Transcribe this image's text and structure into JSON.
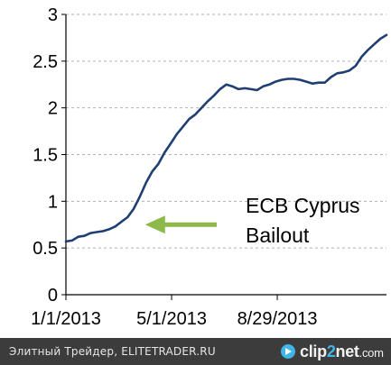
{
  "chart_data": {
    "type": "line",
    "title": "",
    "xlabel": "",
    "ylabel": "",
    "ylim": [
      0,
      3
    ],
    "yticks": [
      "0",
      "0.5",
      "1",
      "1.5",
      "2",
      "2.5",
      "3"
    ],
    "xticks": [
      "1/1/2013",
      "5/1/2013",
      "8/29/2013"
    ],
    "grid": "horizontal dashed",
    "legend": "none",
    "colors": {
      "line": "#1f3f73",
      "arrow": "#8db84a",
      "grid": "#b0b0b0"
    },
    "series": [
      {
        "x": [
          "2013-01-01",
          "2013-01-08",
          "2013-01-15",
          "2013-01-22",
          "2013-01-29",
          "2013-02-05",
          "2013-02-12",
          "2013-02-19",
          "2013-02-26",
          "2013-03-05",
          "2013-03-12",
          "2013-03-19",
          "2013-03-26",
          "2013-04-02",
          "2013-04-09",
          "2013-04-16",
          "2013-04-23",
          "2013-04-30",
          "2013-05-07",
          "2013-05-14",
          "2013-05-21",
          "2013-05-28",
          "2013-06-04",
          "2013-06-11",
          "2013-06-18",
          "2013-06-25",
          "2013-07-02",
          "2013-07-09",
          "2013-07-16",
          "2013-07-23",
          "2013-07-30",
          "2013-08-06",
          "2013-08-13",
          "2013-08-20",
          "2013-08-27",
          "2013-09-03",
          "2013-09-10",
          "2013-09-17",
          "2013-09-24",
          "2013-10-01",
          "2013-10-08",
          "2013-10-15",
          "2013-10-22",
          "2013-10-29",
          "2013-11-05",
          "2013-11-12",
          "2013-11-19",
          "2013-11-26",
          "2013-12-03",
          "2013-12-10",
          "2013-12-17",
          "2013-12-24",
          "2013-12-31"
        ],
        "values": [
          0.57,
          0.58,
          0.62,
          0.63,
          0.66,
          0.67,
          0.68,
          0.7,
          0.73,
          0.78,
          0.83,
          0.92,
          1.05,
          1.2,
          1.32,
          1.4,
          1.52,
          1.62,
          1.72,
          1.8,
          1.88,
          1.93,
          2.0,
          2.07,
          2.13,
          2.2,
          2.25,
          2.23,
          2.2,
          2.21,
          2.2,
          2.19,
          2.23,
          2.25,
          2.28,
          2.3,
          2.31,
          2.31,
          2.3,
          2.28,
          2.26,
          2.27,
          2.27,
          2.33,
          2.37,
          2.38,
          2.4,
          2.45,
          2.55,
          2.62,
          2.68,
          2.74,
          2.78
        ]
      }
    ],
    "annotation": {
      "lines": [
        "ECB Cyprus",
        "Bailout"
      ],
      "arrow_target": {
        "x": "2013-04-01",
        "y": 0.75
      }
    }
  },
  "footer": {
    "caption": "Элитный Трейдер, ELITETRADER.RU",
    "logo_part1": "clip",
    "logo_part2": "2",
    "logo_part3": "net",
    "logo_suffix": ".com"
  }
}
